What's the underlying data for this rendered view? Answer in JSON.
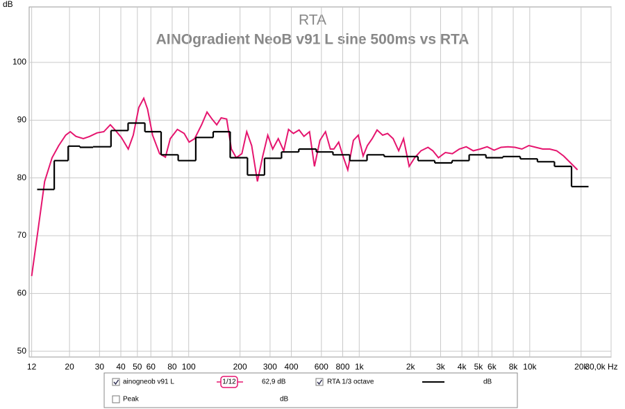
{
  "chart_data": {
    "type": "line",
    "title": "RTA",
    "subtitle": "AINOgradient NeoB v91 L sine 500ms vs RTA",
    "y_label": "dB",
    "log_x": true,
    "grid": true,
    "xlim": [
      11.6,
      30000
    ],
    "ylim": [
      49,
      109.6
    ],
    "xticks": [
      12,
      20,
      30,
      40,
      50,
      60,
      80,
      100,
      200,
      300,
      400,
      600,
      800,
      {
        "value": 1000,
        "label": "1k"
      },
      {
        "value": 2000,
        "label": "2k"
      },
      {
        "value": 3000,
        "label": "3k"
      },
      {
        "value": 4000,
        "label": "4k"
      },
      {
        "value": 5000,
        "label": "5k"
      },
      {
        "value": 6000,
        "label": "6k"
      },
      {
        "value": 8000,
        "label": "8k"
      },
      {
        "value": 10000,
        "label": "10k"
      },
      {
        "value": 20000,
        "label": "20k"
      },
      {
        "value": 30000,
        "label": "30,0k Hz"
      }
    ],
    "yticks": [
      50,
      60,
      70,
      80,
      90,
      100
    ],
    "series": [
      {
        "name": "ainogneob v91 L",
        "color": "#e5146e",
        "style": "line",
        "checked": true,
        "smoothing": "1/12",
        "reading": "62,9 dB",
        "x": [
          12,
          13.1,
          14.3,
          15.8,
          17.3,
          19.0,
          20.2,
          21.8,
          24.1,
          26.3,
          29.0,
          31.8,
          34.7,
          37.0,
          40.3,
          44.2,
          47.3,
          51.0,
          54.5,
          57.4,
          61.4,
          67.5,
          73.0,
          78.0,
          85.8,
          94.1,
          100.5,
          108.4,
          119,
          128,
          137,
          146,
          155,
          167,
          178,
          190,
          205,
          219,
          234,
          253,
          272,
          291,
          311,
          335,
          361,
          385,
          411,
          444,
          474,
          511,
          546,
          588,
          634,
          677,
          710,
          758,
          802,
          857,
          924,
          987,
          1054,
          1116,
          1192,
          1273,
          1372,
          1466,
          1580,
          1704,
          1819,
          1962,
          2115,
          2303,
          2530,
          2702,
          2916,
          3202,
          3517,
          3862,
          4244,
          4662,
          5120,
          5625,
          6177,
          6785,
          7453,
          8187,
          8992,
          9877,
          10850,
          11910,
          13090,
          14380,
          15790,
          17350,
          19050
        ],
        "values": [
          63,
          71.2,
          79.4,
          83.5,
          85.6,
          87.4,
          88,
          87.2,
          86.8,
          87.2,
          87.8,
          88,
          89.2,
          88.3,
          87,
          85,
          87.4,
          92.2,
          93.8,
          91.9,
          87.4,
          84.2,
          83.6,
          86.8,
          88.4,
          87.7,
          86.2,
          86.8,
          89.2,
          91.4,
          90.2,
          89.2,
          90.4,
          90.2,
          85,
          83.5,
          84.2,
          88,
          85.6,
          79.4,
          83.8,
          87.4,
          85,
          86.8,
          84.7,
          88.4,
          87.7,
          88.3,
          87.2,
          88,
          82,
          86.5,
          88,
          85,
          85,
          86.2,
          83.8,
          81.4,
          86.5,
          87.4,
          83.8,
          85.6,
          86.8,
          88.3,
          87.4,
          87.7,
          86.8,
          84.7,
          86.8,
          82,
          83.5,
          84.7,
          85.3,
          84.7,
          83.5,
          84.4,
          84.2,
          85,
          85.4,
          84.7,
          85,
          85.4,
          84.8,
          85.3,
          85.4,
          85.3,
          85,
          85.6,
          85.3,
          85,
          85,
          84.7,
          83.8,
          82.6,
          81.4
        ]
      },
      {
        "name": "RTA 1/3 octave",
        "color": "#000000",
        "style": "step",
        "checked": true,
        "reading": "dB",
        "x": [
          14.5,
          17.5,
          20.5,
          24.5,
          31.2,
          39.3,
          49.3,
          61.4,
          77.3,
          98,
          124,
          156,
          197,
          248,
          312,
          394,
          499,
          625,
          784,
          990,
          1248,
          1572,
          1970,
          2470,
          3120,
          3930,
          4930,
          6200,
          7840,
          9880,
          12440,
          15660,
          19700
        ],
        "values": [
          78,
          83,
          85.5,
          85.3,
          85.4,
          88.2,
          89.5,
          88,
          84,
          83,
          87,
          88,
          83.5,
          80.5,
          83.4,
          84.5,
          85,
          84.5,
          84,
          83,
          84,
          83.7,
          83.7,
          83,
          82.6,
          83,
          84,
          83.5,
          83.7,
          83.3,
          82.8,
          82,
          78.5
        ]
      }
    ],
    "peak": {
      "name": "Peak",
      "checked": false,
      "reading": "dB"
    }
  }
}
